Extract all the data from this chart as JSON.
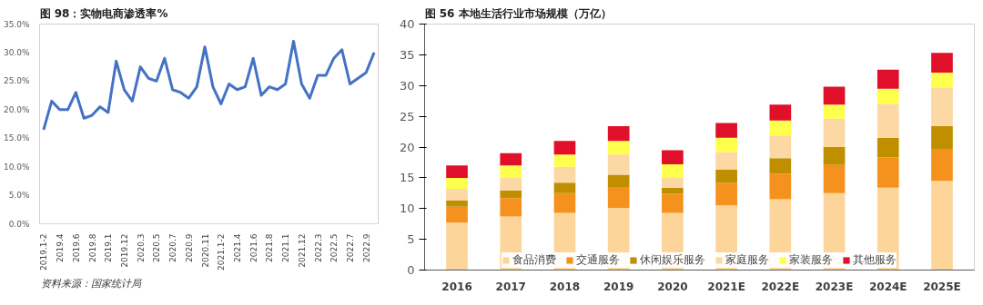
{
  "chart_data": [
    {
      "type": "line",
      "title": "图 98：实物电商渗透率%",
      "categories": [
        "2019.1-2",
        null,
        "2019.4",
        null,
        "2019.6",
        null,
        "2019.8",
        null,
        "2019.1",
        null,
        "2019.12",
        null,
        "2020.3",
        null,
        "2020.5",
        null,
        "2020.7",
        null,
        "2020.9",
        null,
        "2020.11",
        null,
        "2021.1-2",
        null,
        "2021.4",
        null,
        "2021.6",
        null,
        "2021.8",
        null,
        "2021.1",
        null,
        "2021.12",
        null,
        "2022.3",
        null,
        "2022.5",
        null,
        "2022.7",
        null,
        "2022.9",
        null
      ],
      "series": [
        {
          "color": "#4472c4",
          "values": [
            16.5,
            21.5,
            20,
            20,
            23,
            18.5,
            19,
            20.5,
            19.5,
            28.5,
            23.5,
            21.5,
            27.5,
            25.5,
            25,
            29,
            23.5,
            23,
            22,
            24,
            31,
            24,
            21,
            24.5,
            23.5,
            24,
            29,
            22.5,
            24,
            23.5,
            24.5,
            32,
            24.5,
            22,
            26,
            26,
            29,
            30.5,
            24.5,
            25.5,
            26.5,
            30
          ]
        }
      ],
      "ylim": [
        0,
        35
      ],
      "yticks": [
        {
          "value": 0,
          "label": "0.0%"
        },
        {
          "value": 5,
          "label": "5.0%"
        },
        {
          "value": 10,
          "label": "10.0%"
        },
        {
          "value": 15,
          "label": "15.0%"
        },
        {
          "value": 20,
          "label": "20.0%"
        },
        {
          "value": 25,
          "label": "25.0%"
        },
        {
          "value": 30,
          "label": "30.0%"
        },
        {
          "value": 35,
          "label": "35.0%"
        }
      ],
      "grid": false,
      "legend": false,
      "annotations": [
        "资料来源：国家统计局"
      ]
    },
    {
      "type": "bar",
      "stacked": true,
      "title": "图 56  本地生活行业市场规模（万亿）",
      "categories": [
        "2016",
        "2017",
        "2018",
        "2019",
        "2020",
        "2021E",
        "2022E",
        "2023E",
        "2024E",
        "2025E"
      ],
      "series": [
        {
          "name": "食品消费",
          "color": "#fdd59a",
          "values": [
            7.7,
            8.7,
            9.3,
            10.1,
            9.3,
            10.5,
            11.5,
            12.5,
            13.4,
            14.5
          ]
        },
        {
          "name": "交通服务",
          "color": "#f5921e",
          "values": [
            2.6,
            3.0,
            3.2,
            3.4,
            3.1,
            3.7,
            4.2,
            4.6,
            4.9,
            5.2
          ]
        },
        {
          "name": "休闲娱乐服务",
          "color": "#bf8f00",
          "values": [
            1.0,
            1.2,
            1.7,
            2.0,
            1.0,
            2.1,
            2.5,
            2.9,
            3.2,
            3.7
          ]
        },
        {
          "name": "家庭服务",
          "color": "#fbd8a4",
          "values": [
            1.9,
            2.1,
            2.6,
            3.3,
            1.6,
            2.9,
            3.7,
            4.6,
            5.5,
            6.3
          ]
        },
        {
          "name": "家装服务",
          "color": "#ffff4d",
          "values": [
            1.8,
            2.0,
            2.0,
            2.2,
            2.2,
            2.3,
            2.4,
            2.3,
            2.5,
            2.4
          ]
        },
        {
          "name": "其他服务",
          "color": "#e0102a",
          "values": [
            2.0,
            2.0,
            2.2,
            2.4,
            2.3,
            2.4,
            2.6,
            2.9,
            3.1,
            3.2
          ]
        }
      ],
      "ylim": [
        0,
        40
      ],
      "yticks": [
        0,
        5,
        10,
        15,
        20,
        25,
        30,
        35,
        40
      ],
      "grid": false,
      "legend": "bottom"
    }
  ]
}
